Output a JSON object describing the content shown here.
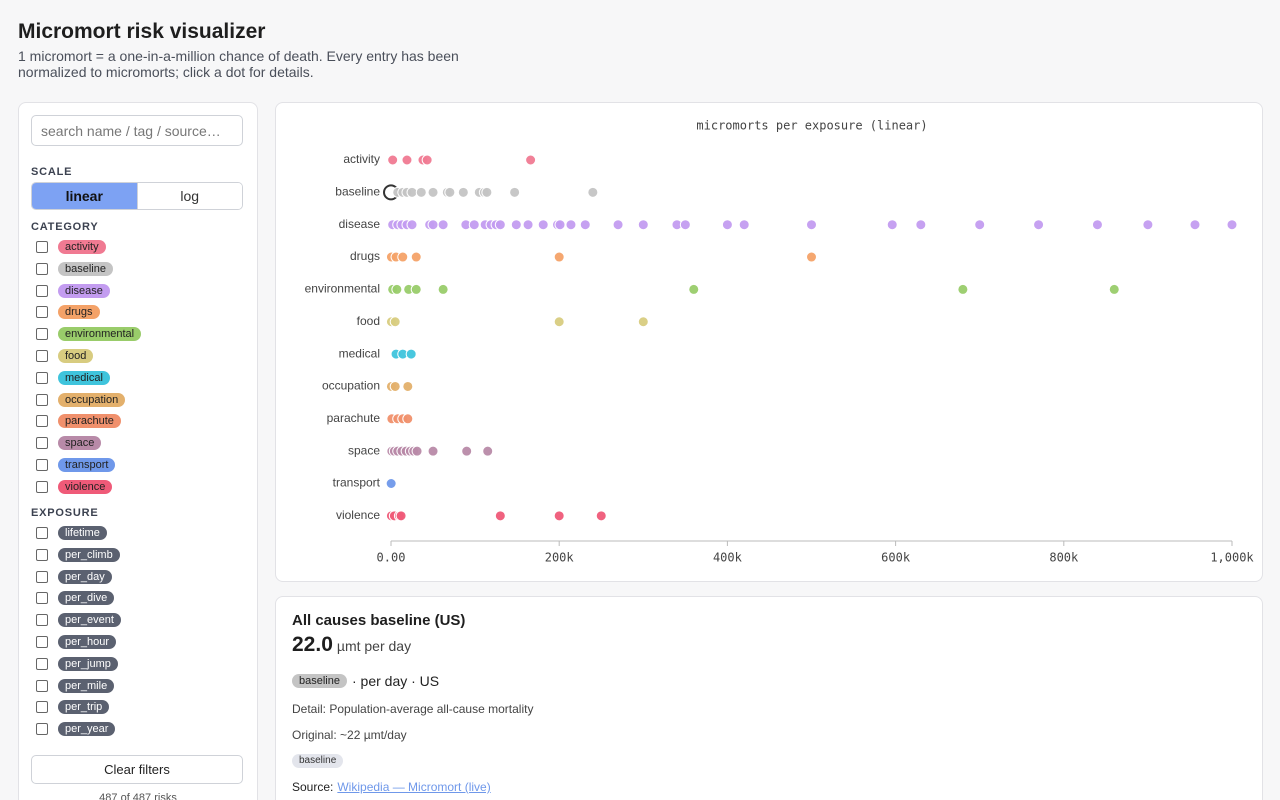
{
  "header": {
    "title": "Micromort risk visualizer",
    "subtitle": "1 micromort = a one-in-a-million chance of death. Every entry has been normalized to micromorts; click a dot for details."
  },
  "sidebar": {
    "search_placeholder": "search name / tag / source…",
    "scale_label": "SCALE",
    "scale_options": [
      "linear",
      "log"
    ],
    "active_scale": "linear",
    "category_label": "CATEGORY",
    "categories": [
      {
        "name": "activity",
        "color": "#f07a92"
      },
      {
        "name": "baseline",
        "color": "#c4c4c4"
      },
      {
        "name": "disease",
        "color": "#c39cf0"
      },
      {
        "name": "drugs",
        "color": "#f4a268"
      },
      {
        "name": "environmental",
        "color": "#99cc6a"
      },
      {
        "name": "food",
        "color": "#d8cc80"
      },
      {
        "name": "medical",
        "color": "#3fc4dc"
      },
      {
        "name": "occupation",
        "color": "#e3b06c"
      },
      {
        "name": "parachute",
        "color": "#f0906c"
      },
      {
        "name": "space",
        "color": "#b88aa8"
      },
      {
        "name": "transport",
        "color": "#6f98ea"
      },
      {
        "name": "violence",
        "color": "#ef5a78"
      }
    ],
    "exposure_label": "EXPOSURE",
    "exposure_color": "#5b6170",
    "exposures": [
      "lifetime",
      "per_climb",
      "per_day",
      "per_dive",
      "per_event",
      "per_hour",
      "per_jump",
      "per_mile",
      "per_trip",
      "per_year"
    ],
    "clear_button": "Clear filters",
    "count_text": "487 of 487 risks"
  },
  "chart_data": {
    "type": "strip",
    "title": "micromorts per exposure (linear)",
    "series": [
      {
        "name": "activity",
        "color": "#f07a92",
        "values": [
          2000,
          19000,
          38000,
          43000,
          166000
        ]
      },
      {
        "name": "baseline",
        "color": "#c4c4c4",
        "values": [
          22,
          8000,
          14000,
          19000,
          25000,
          36000,
          50000,
          67000,
          70000,
          86000,
          105000,
          111000,
          114000,
          147000,
          240000
        ]
      },
      {
        "name": "disease",
        "color": "#c39cf0",
        "values": [
          2000,
          8000,
          13000,
          19000,
          25000,
          46000,
          50000,
          62000,
          89000,
          99000,
          112000,
          119000,
          125000,
          130000,
          149000,
          163000,
          181000,
          198000,
          201000,
          214000,
          231000,
          270000,
          300000,
          340000,
          350000,
          400000,
          420000,
          500000,
          596000,
          630000,
          700000,
          770000,
          840000,
          900000,
          956000,
          1000000
        ]
      },
      {
        "name": "drugs",
        "color": "#f4a268",
        "values": [
          500,
          6000,
          14000,
          30000,
          200000,
          500000
        ]
      },
      {
        "name": "environmental",
        "color": "#99cc6a",
        "values": [
          2000,
          7000,
          21000,
          30000,
          62000,
          360000,
          680000,
          860000
        ]
      },
      {
        "name": "food",
        "color": "#d8cc80",
        "values": [
          500,
          5000,
          200000,
          300000
        ]
      },
      {
        "name": "medical",
        "color": "#3fc4dc",
        "values": [
          6000,
          14000,
          24000
        ]
      },
      {
        "name": "occupation",
        "color": "#e3b06c",
        "values": [
          500,
          5000,
          20000
        ]
      },
      {
        "name": "parachute",
        "color": "#f0906c",
        "values": [
          1000,
          8000,
          14000,
          20000
        ]
      },
      {
        "name": "space",
        "color": "#b88aa8",
        "values": [
          1000,
          4000,
          8000,
          13000,
          18000,
          23000,
          27000,
          31000,
          50000,
          90000,
          115000
        ]
      },
      {
        "name": "transport",
        "color": "#6f98ea",
        "values": [
          200
        ]
      },
      {
        "name": "violence",
        "color": "#ef5a78",
        "values": [
          500,
          4000,
          10000,
          12000,
          130000,
          200000,
          250000
        ]
      }
    ],
    "xlim": [
      0,
      1000000
    ],
    "xticks": [
      {
        "value": 0,
        "label": "0.00"
      },
      {
        "value": 200000,
        "label": "200k"
      },
      {
        "value": 400000,
        "label": "400k"
      },
      {
        "value": 600000,
        "label": "600k"
      },
      {
        "value": 800000,
        "label": "800k"
      },
      {
        "value": 1000000,
        "label": "1,000k"
      }
    ],
    "highlight": {
      "series": 1,
      "index": 0
    }
  },
  "detail": {
    "title": "All causes baseline (US)",
    "value": "22.0",
    "unit": "µmt per day",
    "category": "baseline",
    "meta": "· per day · US",
    "detail": "Detail: Population-average all-cause mortality",
    "original": "Original: ~22 µmt/day",
    "tags": [
      "baseline"
    ],
    "source_label": "Source:",
    "source_link": "Wikipedia — Micromort (live)"
  }
}
